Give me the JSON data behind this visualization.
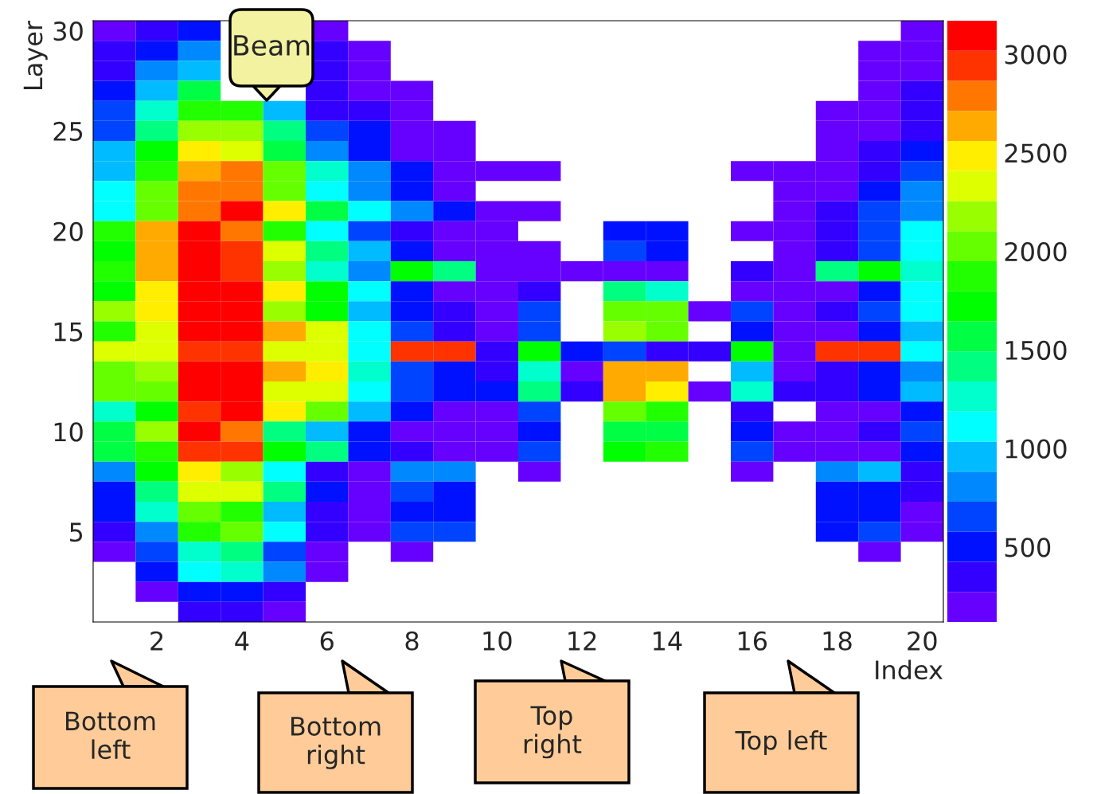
{
  "chart_data": {
    "type": "heatmap",
    "xlabel": "Index",
    "ylabel": "Layer",
    "x": [
      1,
      2,
      3,
      4,
      5,
      6,
      7,
      8,
      9,
      10,
      11,
      12,
      13,
      14,
      15,
      16,
      17,
      18,
      19,
      20
    ],
    "xlim": [
      0.5,
      20.5
    ],
    "ylim": [
      0.5,
      30.5
    ],
    "xticks": [
      2,
      4,
      6,
      8,
      10,
      12,
      14,
      16,
      18,
      20
    ],
    "yticks": [
      5,
      10,
      15,
      20,
      25,
      30
    ],
    "clim": [
      120,
      3170
    ],
    "cticks": [
      500,
      1000,
      1500,
      2000,
      2500,
      3000
    ],
    "cells": [
      [
        200,
        350,
        500,
        null,
        null,
        200,
        null,
        null,
        null,
        null,
        null,
        null,
        null,
        null,
        null,
        null,
        null,
        null,
        null,
        200
      ],
      [
        350,
        500,
        810,
        null,
        null,
        350,
        200,
        null,
        null,
        null,
        null,
        null,
        null,
        null,
        null,
        null,
        null,
        null,
        200,
        200
      ],
      [
        350,
        810,
        960,
        null,
        null,
        350,
        200,
        null,
        null,
        null,
        null,
        null,
        null,
        null,
        null,
        null,
        null,
        null,
        200,
        200
      ],
      [
        500,
        960,
        1570,
        null,
        null,
        350,
        200,
        200,
        null,
        null,
        null,
        null,
        null,
        null,
        null,
        null,
        null,
        null,
        200,
        350
      ],
      [
        650,
        1260,
        1870,
        1870,
        960,
        350,
        350,
        200,
        null,
        null,
        null,
        null,
        null,
        null,
        null,
        null,
        null,
        200,
        200,
        350
      ],
      [
        650,
        1420,
        2180,
        2180,
        1420,
        650,
        500,
        200,
        200,
        null,
        null,
        null,
        null,
        null,
        null,
        null,
        null,
        200,
        200,
        350
      ],
      [
        960,
        1720,
        2480,
        2330,
        1570,
        810,
        500,
        200,
        200,
        null,
        null,
        null,
        null,
        null,
        null,
        null,
        null,
        200,
        350,
        500
      ],
      [
        960,
        1870,
        2640,
        2790,
        2030,
        1260,
        810,
        500,
        200,
        200,
        200,
        null,
        null,
        null,
        null,
        200,
        200,
        200,
        350,
        650
      ],
      [
        1110,
        2030,
        2790,
        2790,
        2030,
        1110,
        810,
        500,
        200,
        null,
        null,
        null,
        null,
        null,
        null,
        null,
        200,
        200,
        500,
        810
      ],
      [
        1110,
        2030,
        2790,
        3090,
        2480,
        1570,
        1110,
        810,
        500,
        200,
        200,
        null,
        null,
        null,
        null,
        null,
        200,
        350,
        650,
        810
      ],
      [
        1870,
        2640,
        3090,
        2790,
        1870,
        1110,
        650,
        350,
        200,
        200,
        null,
        null,
        500,
        500,
        null,
        200,
        200,
        350,
        650,
        1110
      ],
      [
        1720,
        2640,
        3090,
        2940,
        2330,
        1420,
        960,
        500,
        200,
        200,
        200,
        null,
        650,
        500,
        null,
        null,
        200,
        350,
        650,
        1110
      ],
      [
        1870,
        2640,
        3090,
        2940,
        2180,
        1260,
        810,
        1720,
        1420,
        200,
        200,
        200,
        200,
        200,
        null,
        350,
        200,
        1420,
        1720,
        1260
      ],
      [
        1720,
        2480,
        3090,
        3090,
        2480,
        1720,
        1110,
        500,
        200,
        200,
        350,
        null,
        1420,
        1260,
        null,
        200,
        200,
        200,
        500,
        1110
      ],
      [
        2180,
        2480,
        3090,
        3090,
        2180,
        1720,
        960,
        500,
        350,
        200,
        650,
        null,
        2030,
        2030,
        200,
        650,
        200,
        350,
        650,
        1110
      ],
      [
        1870,
        2330,
        3090,
        3090,
        2640,
        2330,
        1110,
        650,
        350,
        200,
        650,
        null,
        2180,
        2030,
        null,
        500,
        200,
        200,
        500,
        960
      ],
      [
        2330,
        2330,
        2940,
        2940,
        2330,
        2330,
        1110,
        2940,
        2940,
        350,
        1720,
        500,
        650,
        350,
        350,
        1720,
        200,
        2940,
        2940,
        1110
      ],
      [
        2030,
        2180,
        3090,
        3090,
        2640,
        2480,
        1260,
        650,
        500,
        350,
        1260,
        200,
        2640,
        2640,
        null,
        960,
        200,
        350,
        500,
        810
      ],
      [
        2030,
        2030,
        3090,
        3090,
        2330,
        2330,
        1110,
        650,
        500,
        500,
        1420,
        350,
        2640,
        2480,
        200,
        1260,
        350,
        350,
        500,
        960
      ],
      [
        1260,
        1720,
        2940,
        3090,
        2480,
        2030,
        960,
        500,
        200,
        200,
        650,
        null,
        2030,
        1870,
        null,
        350,
        null,
        200,
        200,
        500
      ],
      [
        1570,
        2180,
        3090,
        2790,
        1420,
        960,
        500,
        200,
        200,
        200,
        500,
        null,
        1570,
        1570,
        null,
        500,
        200,
        200,
        350,
        650
      ],
      [
        1570,
        1870,
        2940,
        2940,
        1720,
        1420,
        500,
        350,
        200,
        200,
        650,
        null,
        1720,
        1870,
        null,
        650,
        200,
        200,
        200,
        500
      ],
      [
        810,
        1720,
        2480,
        2180,
        1110,
        350,
        200,
        810,
        810,
        null,
        200,
        null,
        null,
        null,
        null,
        200,
        null,
        810,
        960,
        350
      ],
      [
        500,
        1420,
        2330,
        2330,
        1420,
        500,
        200,
        650,
        500,
        null,
        null,
        null,
        null,
        null,
        null,
        null,
        null,
        500,
        500,
        350
      ],
      [
        500,
        1260,
        2030,
        1870,
        960,
        350,
        200,
        500,
        500,
        null,
        null,
        null,
        null,
        null,
        null,
        null,
        null,
        500,
        500,
        200
      ],
      [
        350,
        810,
        1870,
        2030,
        1110,
        350,
        200,
        650,
        650,
        null,
        null,
        null,
        null,
        null,
        null,
        null,
        null,
        500,
        650,
        200
      ],
      [
        200,
        650,
        1260,
        1420,
        650,
        200,
        null,
        200,
        null,
        null,
        null,
        null,
        null,
        null,
        null,
        null,
        null,
        null,
        200,
        null
      ],
      [
        null,
        500,
        1110,
        1260,
        810,
        200,
        null,
        null,
        null,
        null,
        null,
        null,
        null,
        null,
        null,
        null,
        null,
        null,
        null,
        null
      ],
      [
        null,
        200,
        500,
        500,
        350,
        null,
        null,
        null,
        null,
        null,
        null,
        null,
        null,
        null,
        null,
        null,
        null,
        null,
        null,
        null
      ],
      [
        null,
        null,
        350,
        350,
        200,
        null,
        null,
        null,
        null,
        null,
        null,
        null,
        null,
        null,
        null,
        null,
        null,
        null,
        null,
        null
      ]
    ],
    "annotations": [
      "Beam",
      "Bottom\nleft",
      "Bottom\nright",
      "Top\nright",
      "Top left"
    ]
  }
}
